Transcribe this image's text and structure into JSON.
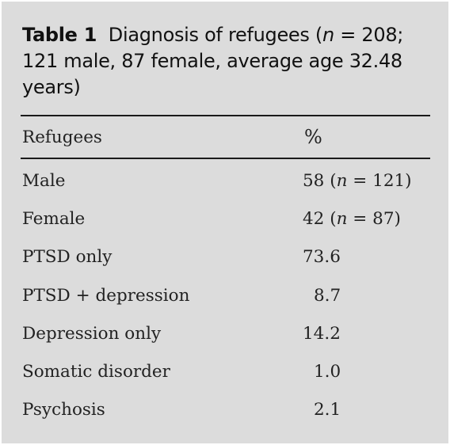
{
  "caption": {
    "label": "Table 1",
    "text_before_n": "Diagnosis of refugees (",
    "n_symbol": "n",
    "text_after_n": " = 208; 121 male, 87 female, average age 32.48 years)"
  },
  "table": {
    "headers": {
      "name": "Refugees",
      "value": "%"
    },
    "rows": [
      {
        "name": "Male",
        "value": "58",
        "n_note": "n = 121"
      },
      {
        "name": "Female",
        "value": "42",
        "n_note": "n = 87"
      },
      {
        "name": "PTSD only",
        "value": "73.6",
        "n_note": ""
      },
      {
        "name": "PTSD + depression",
        "value": "8.7",
        "n_note": ""
      },
      {
        "name": "Depression only",
        "value": "14.2",
        "n_note": ""
      },
      {
        "name": "Somatic disorder",
        "value": "1.0",
        "n_note": ""
      },
      {
        "name": "Psychosis",
        "value": "2.1",
        "n_note": ""
      }
    ]
  }
}
